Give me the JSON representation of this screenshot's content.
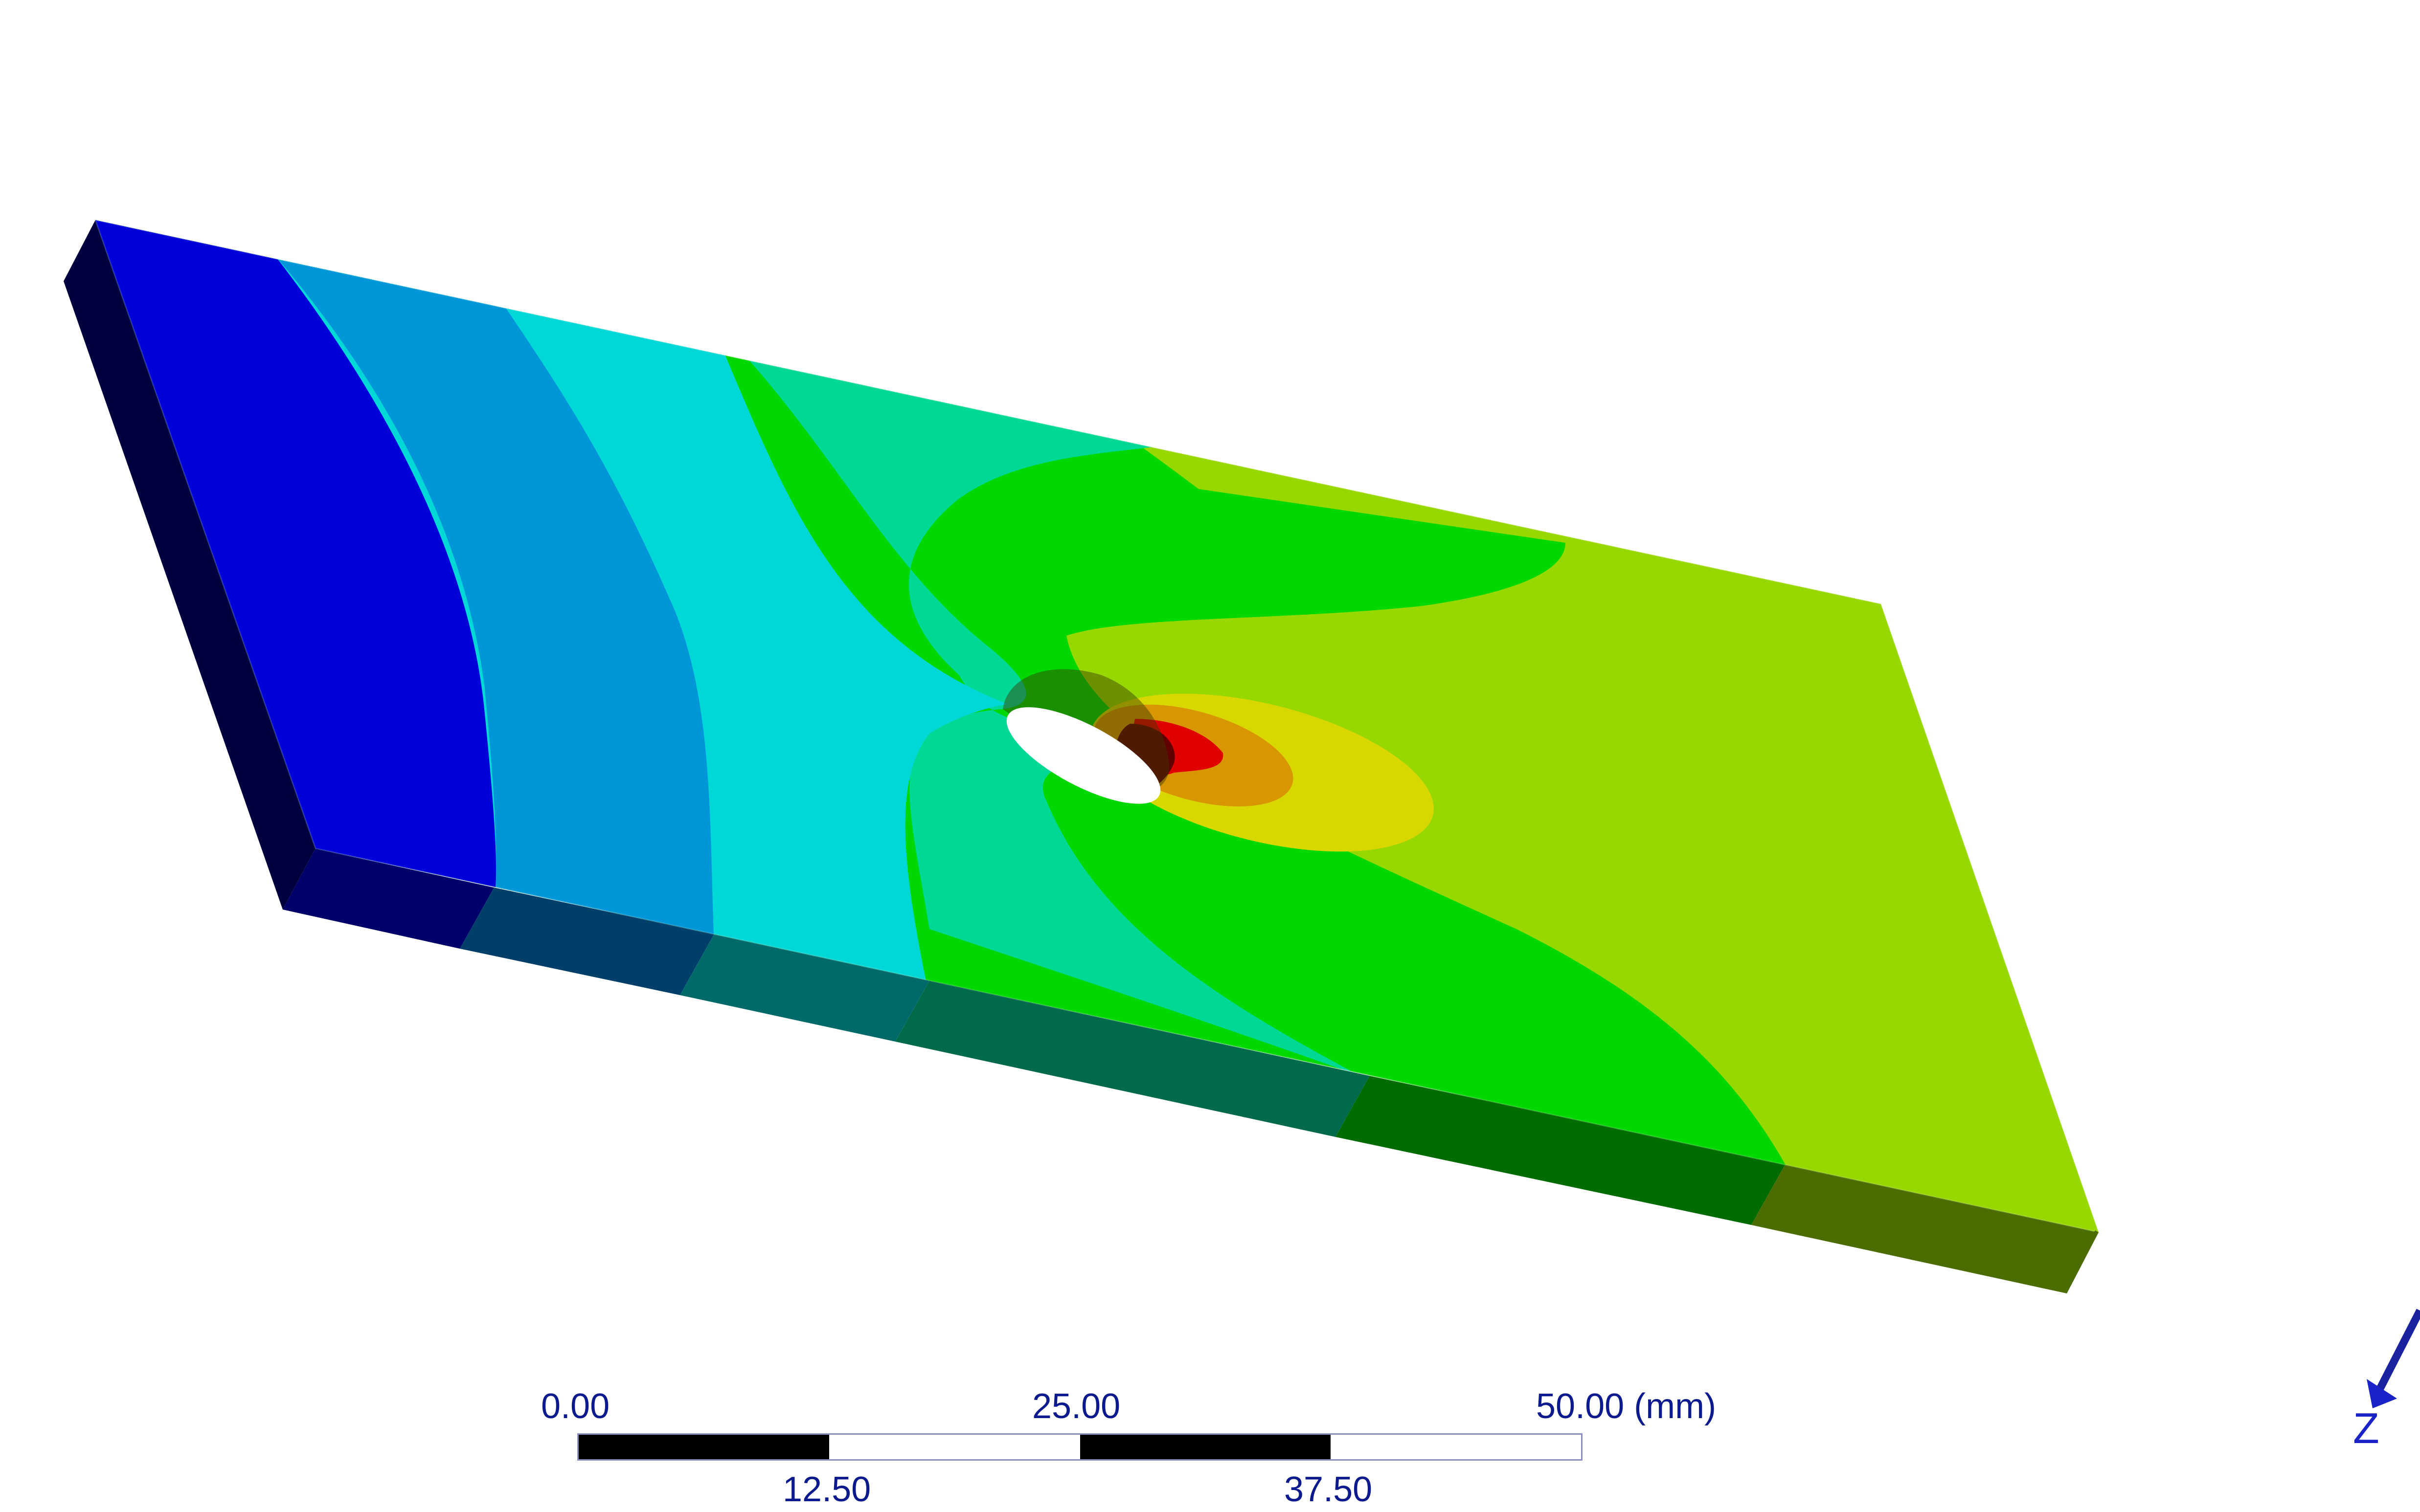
{
  "scene": {
    "kind": "stress-contour-plot",
    "hole_icon": "hole-icon",
    "contour_colors": [
      "#0000d8",
      "#0096d8",
      "#00d8d8",
      "#00d896",
      "#00d800",
      "#96d800",
      "#d8d800",
      "#d89600",
      "#d80000",
      "#600000"
    ]
  },
  "scale_bar": {
    "labels_top": [
      "0.00",
      "25.00",
      "50.00 (mm)"
    ],
    "labels_bottom": [
      "12.50",
      "37.50"
    ],
    "label_color": "#0b1a8c"
  },
  "triad": {
    "axis_label": "Z",
    "icon": "axis-arrow-icon",
    "color": "#1a22c8"
  }
}
